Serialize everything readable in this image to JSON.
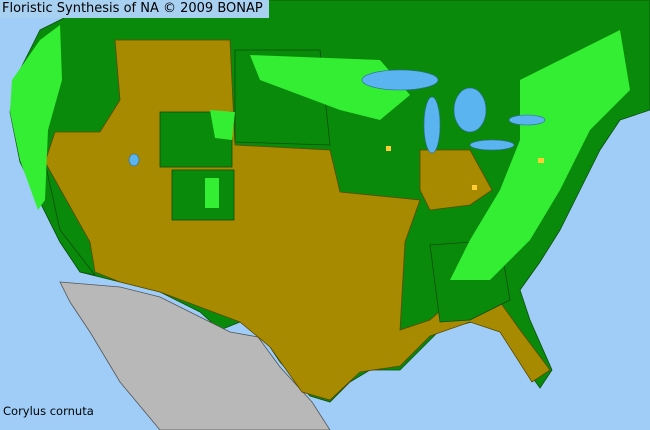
{
  "map": {
    "title": "Floristic Synthesis of NA © 2009 BONAP",
    "species_label": "Corylus cornuta",
    "colors": {
      "ocean": "#9fcdf7",
      "present_native": "#0a8a0a",
      "present_county": "#33ee33",
      "absent_state": "#a88a00",
      "not_in_scope": "#b8b8b8",
      "lakes": "#5ab4f0",
      "rare": "#ffcc33"
    }
  }
}
